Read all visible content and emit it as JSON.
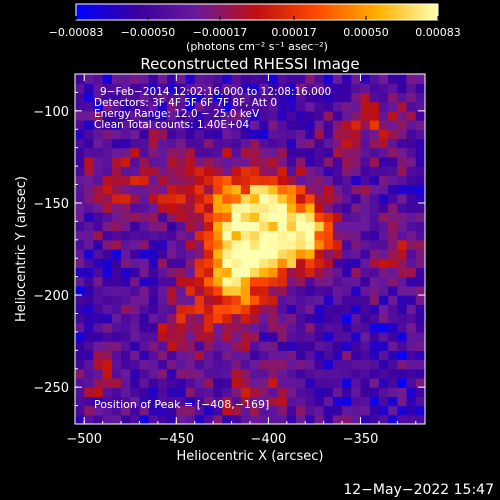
{
  "chart_data": {
    "type": "heatmap",
    "title": "Reconstructed RHESSI Image",
    "xlabel": "Heliocentric X (arcsec)",
    "ylabel": "Heliocentric Y (arcsec)",
    "xlim": [
      -505,
      -315
    ],
    "ylim": [
      -270,
      -80
    ],
    "x_ticks": [
      -500,
      -450,
      -400,
      -350
    ],
    "y_ticks": [
      -100,
      -150,
      -200,
      -250
    ],
    "x_tick_labels": [
      "−500",
      "−450",
      "−400",
      "−350"
    ],
    "y_tick_labels": [
      "−100",
      "−150",
      "−200",
      "−250"
    ],
    "colorbar": {
      "min": -0.00083,
      "max": 0.00083,
      "ticks": [
        -0.00083,
        -0.0005,
        -0.00017,
        0.00017,
        0.0005,
        0.00083
      ],
      "tick_labels": [
        "−0.00083",
        "−0.00050",
        "−0.00017",
        "0.00017",
        "0.00050",
        "0.00083"
      ],
      "units_label": "(photons cm⁻² s⁻¹ asec⁻²)",
      "colors": [
        "#0000ff",
        "#3a00a0",
        "#6a1a9a",
        "#c01010",
        "#ff4a00",
        "#ffb000",
        "#ffffb0"
      ]
    },
    "annotations": [
      "9−Feb−2014 12:02:16.000 to 12:08:16.000",
      "Detectors: 3F 4F 5F 6F 7F 8F, Att 0",
      "Energy Range: 12.0 − 25.0 keV",
      "Clean     Total counts: 1.40E+04"
    ],
    "peak_label": "Position of Peak = [−408,−169]",
    "peak": [
      -408,
      -169
    ],
    "timestamp": "12−May−2022 15:47"
  }
}
